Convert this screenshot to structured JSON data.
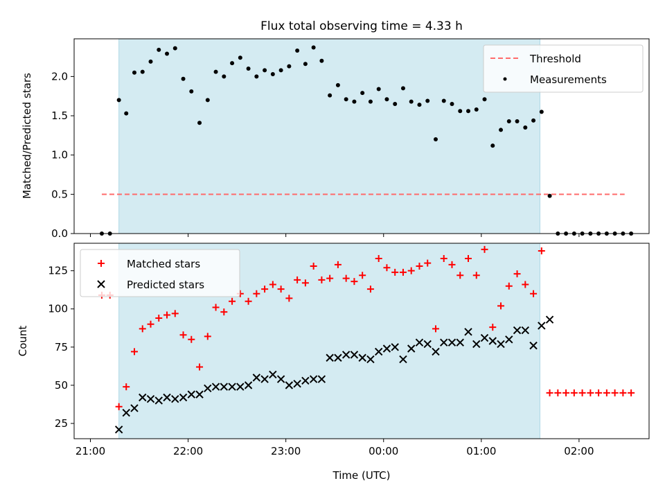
{
  "figure": {
    "title": "Flux total observing time = 4.33 h",
    "xlabel": "Time (UTC)"
  },
  "colors": {
    "shade": "#add8e6",
    "threshold": "#ff6b6b",
    "measurements": "#000000",
    "matched": "#ff0000",
    "predicted": "#000000"
  },
  "chart_data": [
    {
      "type": "scatter",
      "panel": "top",
      "ylabel": "Matched/Predicted stars",
      "x_ticks": [
        "21:00",
        "22:00",
        "23:00",
        "00:00",
        "01:00",
        "02:00"
      ],
      "x_tick_minutes": [
        0,
        60,
        120,
        180,
        240,
        300
      ],
      "xlim_minutes": [
        -10,
        343
      ],
      "y_ticks": [
        "0.0",
        "0.5",
        "1.0",
        "1.5",
        "2.0"
      ],
      "y_tick_values": [
        0,
        0.5,
        1.0,
        1.5,
        2.0
      ],
      "ylim": [
        0,
        2.48
      ],
      "shaded_span_minutes": [
        17.5,
        276
      ],
      "threshold": {
        "name": "Threshold",
        "value": 0.5,
        "x_minutes": [
          7,
          328
        ]
      },
      "legend": [
        "Threshold",
        "Measurements"
      ],
      "legend_position": "top-right",
      "series": [
        {
          "name": "Measurements",
          "x_minutes": [
            7,
            12,
            17.5,
            22,
            27,
            32,
            37,
            42,
            47,
            52,
            57,
            62,
            67,
            72,
            77,
            82,
            87,
            92,
            97,
            102,
            107,
            112,
            117,
            122,
            127,
            132,
            137,
            142,
            147,
            152,
            157,
            162,
            167,
            172,
            177,
            182,
            187,
            192,
            197,
            202,
            207,
            212,
            217,
            222,
            227,
            232,
            237,
            242,
            247,
            252,
            257,
            262,
            267,
            272,
            277,
            282,
            287,
            292,
            297,
            302,
            307,
            312,
            317,
            322,
            327,
            332
          ],
          "y": [
            0,
            0,
            1.7,
            1.53,
            2.05,
            2.06,
            2.19,
            2.34,
            2.29,
            2.36,
            1.97,
            1.81,
            1.41,
            1.7,
            2.06,
            2.0,
            2.17,
            2.24,
            2.1,
            2.0,
            2.08,
            2.03,
            2.08,
            2.13,
            2.33,
            2.16,
            2.37,
            2.2,
            1.76,
            1.89,
            1.71,
            1.68,
            1.79,
            1.68,
            1.84,
            1.71,
            1.65,
            1.85,
            1.68,
            1.64,
            1.69,
            1.2,
            1.69,
            1.65,
            1.56,
            1.56,
            1.58,
            1.71,
            1.12,
            1.32,
            1.43,
            1.43,
            1.35,
            1.44,
            1.55,
            0.48,
            0,
            0,
            0,
            0,
            0,
            0,
            0,
            0,
            0,
            0
          ]
        }
      ]
    },
    {
      "type": "scatter",
      "panel": "bottom",
      "ylabel": "Count",
      "x_ticks": [
        "21:00",
        "22:00",
        "23:00",
        "00:00",
        "01:00",
        "02:00"
      ],
      "x_tick_minutes": [
        0,
        60,
        120,
        180,
        240,
        300
      ],
      "xlim_minutes": [
        -10,
        343
      ],
      "y_ticks": [
        "25",
        "50",
        "75",
        "100",
        "125"
      ],
      "y_tick_values": [
        25,
        50,
        75,
        100,
        125
      ],
      "ylim": [
        15,
        143
      ],
      "shaded_span_minutes": [
        17.5,
        276
      ],
      "legend": [
        "Matched stars",
        "Predicted stars"
      ],
      "legend_position": "top-left",
      "series": [
        {
          "name": "Matched stars",
          "marker": "+",
          "x_minutes": [
            7,
            12,
            17.5,
            22,
            27,
            32,
            37,
            42,
            47,
            52,
            57,
            62,
            67,
            72,
            77,
            82,
            87,
            92,
            97,
            102,
            107,
            112,
            117,
            122,
            127,
            132,
            137,
            142,
            147,
            152,
            157,
            162,
            167,
            172,
            177,
            182,
            187,
            192,
            197,
            202,
            207,
            212,
            217,
            222,
            227,
            232,
            237,
            242,
            247,
            252,
            257,
            262,
            267,
            272,
            277,
            282,
            287,
            292,
            297,
            302,
            307,
            312,
            317,
            322,
            327,
            332
          ],
          "y": [
            109,
            109,
            36,
            49,
            72,
            87,
            90,
            94,
            96,
            97,
            83,
            80,
            62,
            82,
            101,
            98,
            105,
            110,
            105,
            110,
            113,
            116,
            113,
            107,
            119,
            117,
            128,
            119,
            120,
            129,
            120,
            118,
            122,
            113,
            133,
            127,
            124,
            124,
            125,
            128,
            130,
            87,
            133,
            129,
            122,
            133,
            122,
            139,
            88,
            102,
            115,
            123,
            116,
            110,
            138,
            45,
            45,
            45,
            45,
            45,
            45,
            45,
            45,
            45,
            45,
            45
          ]
        },
        {
          "name": "Predicted stars",
          "marker": "x",
          "x_minutes": [
            17.5,
            22,
            27,
            32,
            37,
            42,
            47,
            52,
            57,
            62,
            67,
            72,
            77,
            82,
            87,
            92,
            97,
            102,
            107,
            112,
            117,
            122,
            127,
            132,
            137,
            142,
            147,
            152,
            157,
            162,
            167,
            172,
            177,
            182,
            187,
            192,
            197,
            202,
            207,
            212,
            217,
            222,
            227,
            232,
            237,
            242,
            247,
            252,
            257,
            262,
            267,
            272,
            277,
            282,
            287
          ],
          "y": [
            21,
            32,
            35,
            42,
            41,
            40,
            42,
            41,
            42,
            44,
            44,
            48,
            49,
            49,
            49,
            49,
            50,
            55,
            54,
            57,
            54,
            50,
            51,
            53,
            54,
            54,
            68,
            68,
            70,
            70,
            68,
            67,
            72,
            74,
            75,
            67,
            74,
            78,
            77,
            72,
            78,
            78,
            78,
            85,
            77,
            81,
            79,
            77,
            80,
            86,
            86,
            76,
            89,
            93,
            null
          ]
        }
      ]
    }
  ]
}
